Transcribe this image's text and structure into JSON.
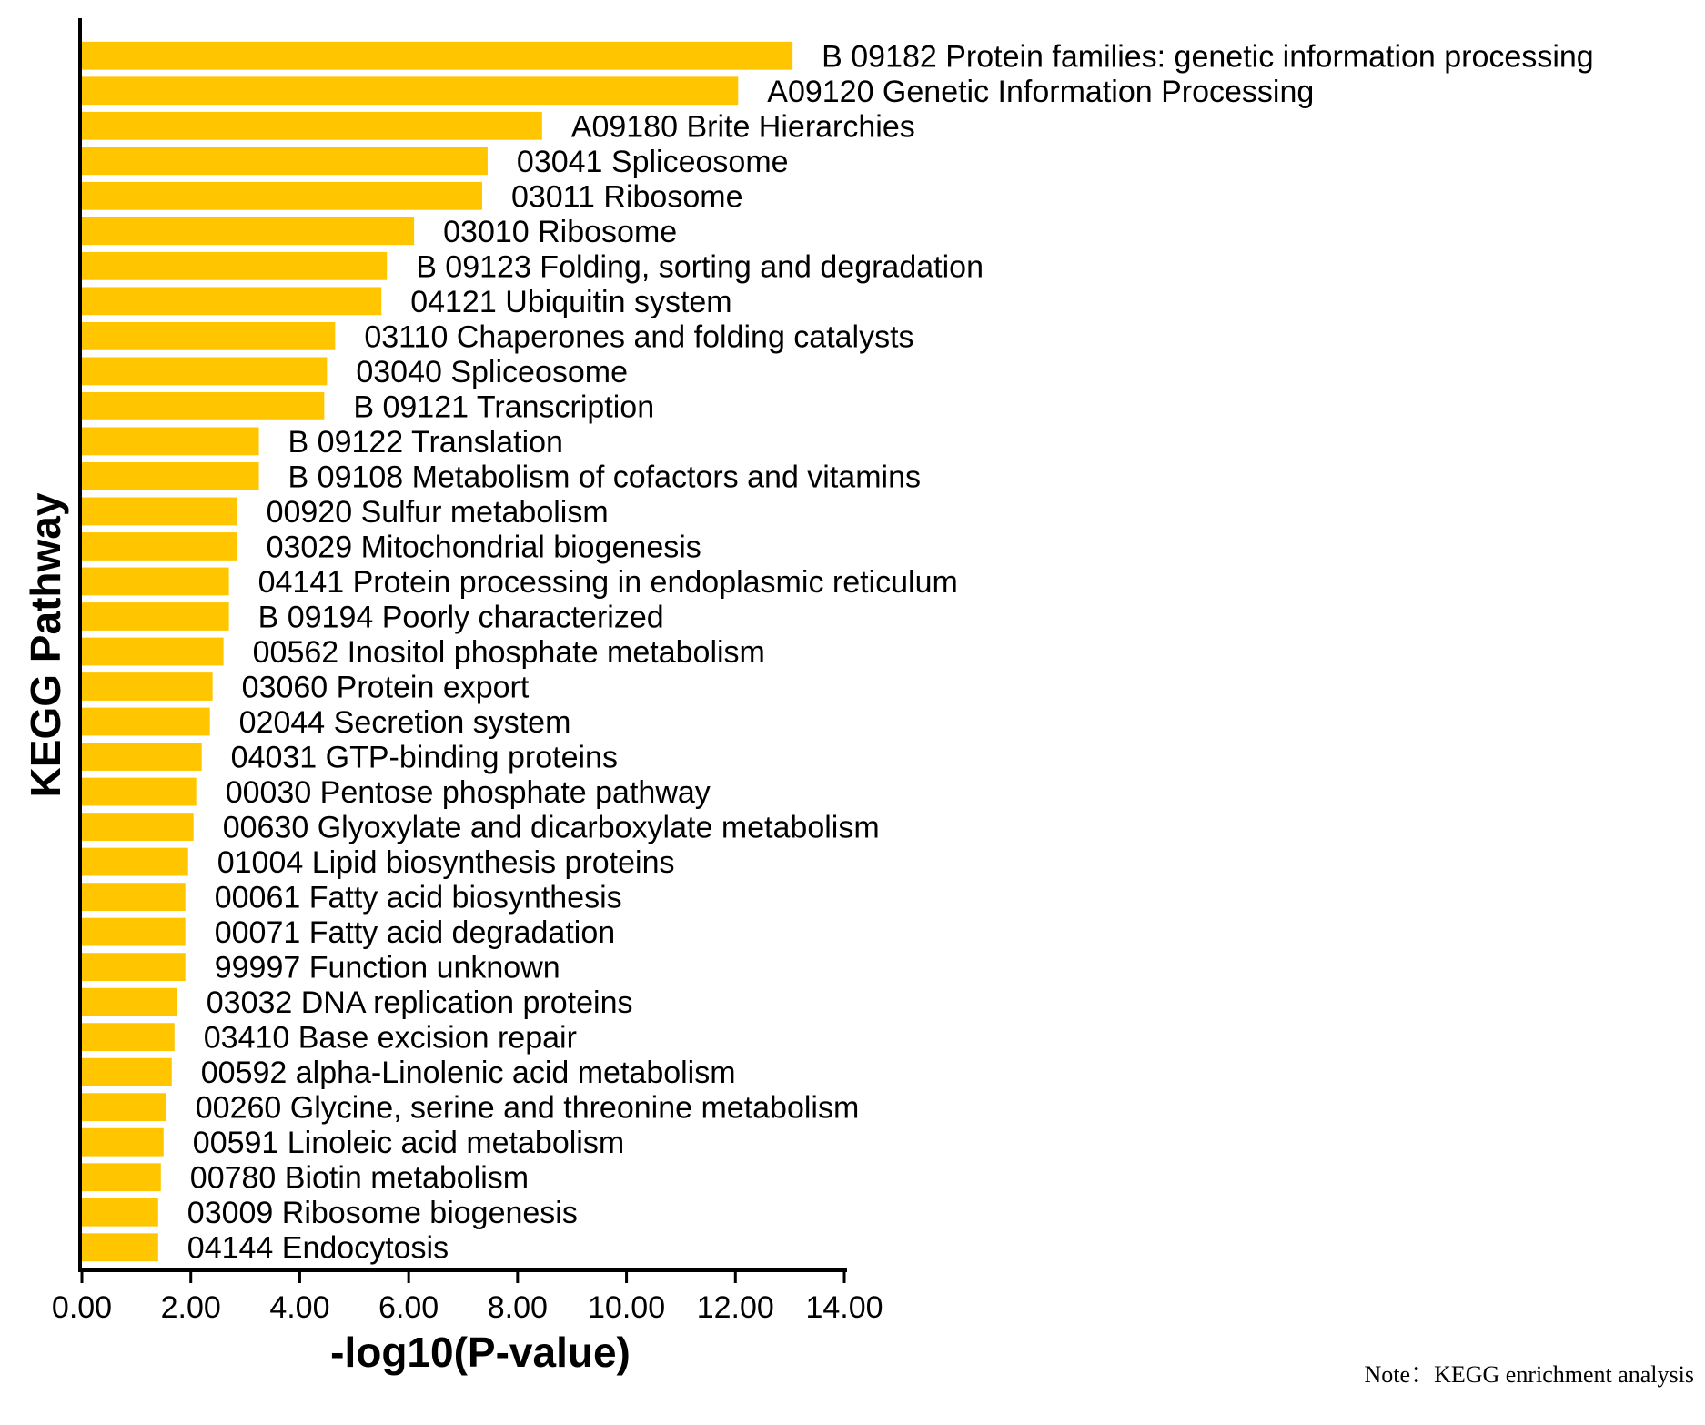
{
  "chart_data": {
    "type": "bar",
    "orientation": "horizontal",
    "title": "",
    "xlabel": "-log10(P-value)",
    "ylabel": "KEGG Pathway",
    "xlim": [
      0,
      14
    ],
    "x_ticks": [
      "0.00",
      "2.00",
      "4.00",
      "6.00",
      "8.00",
      "10.00",
      "12.00",
      "14.00"
    ],
    "bar_color": "#ffc600",
    "grid": false,
    "legend": "none",
    "categories": [
      "B  09182 Protein families: genetic information processing",
      "A09120 Genetic Information Processing",
      "A09180 Brite Hierarchies",
      "03041 Spliceosome",
      "03011 Ribosome",
      "03010 Ribosome",
      "B  09123 Folding, sorting and degradation",
      "04121 Ubiquitin system",
      "03110 Chaperones and folding catalysts",
      "03040 Spliceosome",
      "B  09121 Transcription",
      "B  09122 Translation",
      "B  09108 Metabolism of cofactors and vitamins",
      "00920 Sulfur metabolism",
      "03029 Mitochondrial biogenesis",
      "04141 Protein processing in endoplasmic reticulum",
      "B  09194 Poorly characterized",
      "00562 Inositol phosphate metabolism",
      "03060 Protein export",
      "02044 Secretion system",
      "04031 GTP-binding proteins",
      "00030 Pentose phosphate pathway",
      "00630 Glyoxylate and dicarboxylate metabolism",
      "01004 Lipid biosynthesis proteins",
      "00061 Fatty acid biosynthesis",
      "00071 Fatty acid degradation",
      "99997 Function unknown",
      "03032 DNA replication proteins",
      "03410 Base excision repair",
      "00592 alpha-Linolenic acid metabolism",
      "00260 Glycine, serine and threonine metabolism",
      "00591 Linoleic acid metabolism",
      "00780 Biotin metabolism",
      "03009 Ribosome biogenesis",
      "04144 Endocytosis"
    ],
    "values": [
      13.05,
      12.05,
      8.45,
      7.45,
      7.35,
      6.1,
      5.6,
      5.5,
      4.65,
      4.5,
      4.45,
      3.25,
      3.25,
      2.85,
      2.85,
      2.7,
      2.7,
      2.6,
      2.4,
      2.35,
      2.2,
      2.1,
      2.05,
      1.95,
      1.9,
      1.9,
      1.9,
      1.75,
      1.7,
      1.65,
      1.55,
      1.5,
      1.45,
      1.4,
      1.4
    ]
  },
  "note": "Note：KEGG enrichment analysis"
}
